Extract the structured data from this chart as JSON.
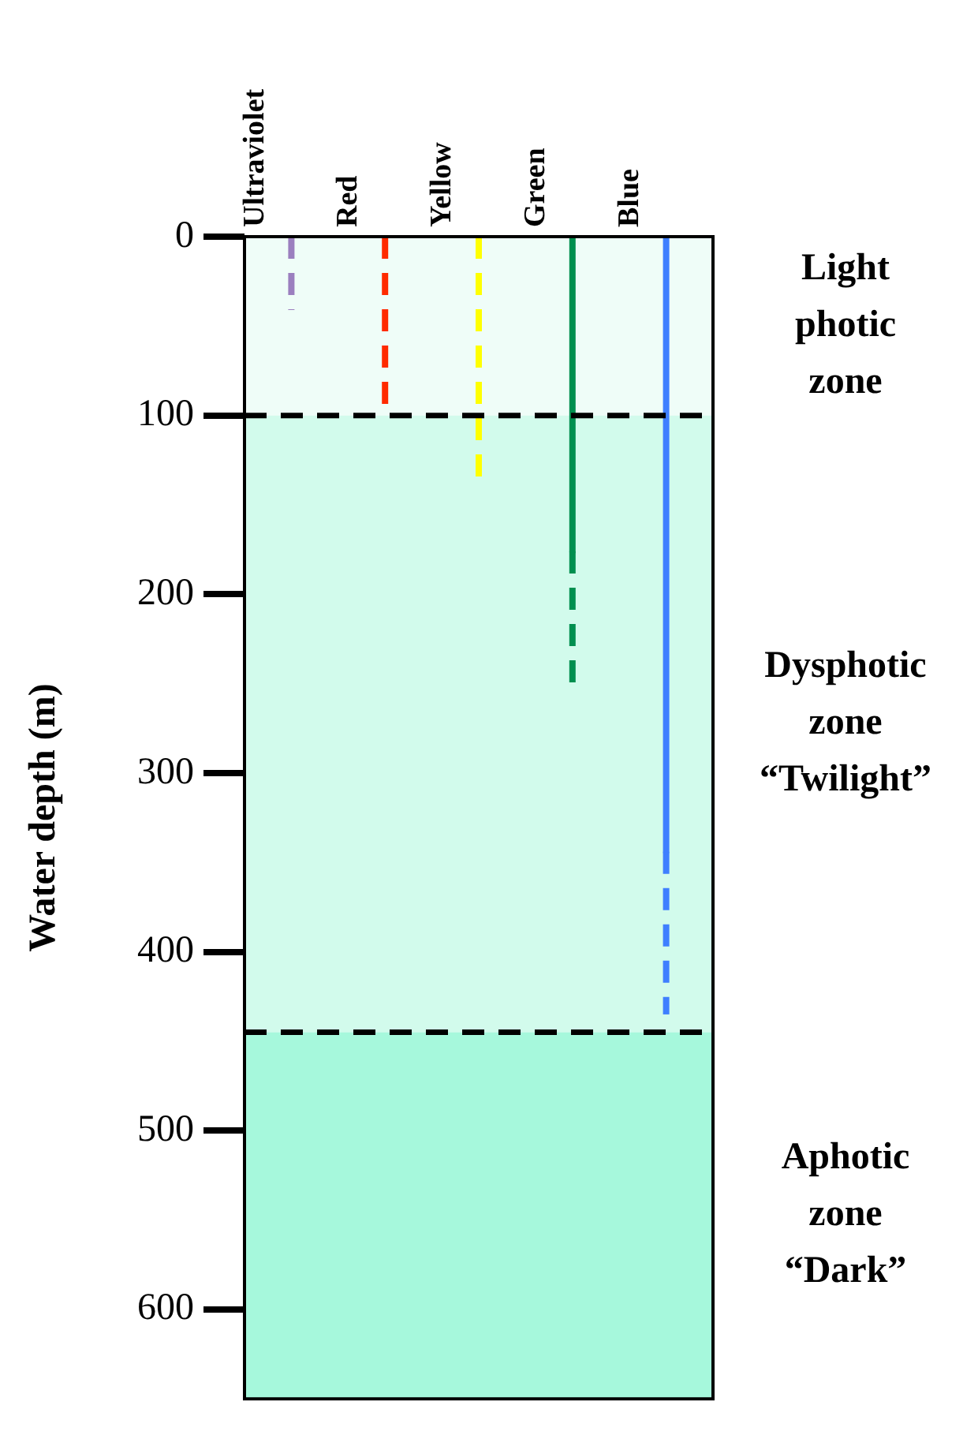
{
  "chart_data": {
    "type": "line",
    "categories": [
      "Ultraviolet",
      "Red",
      "Yellow",
      "Green",
      "Blue"
    ],
    "ylabel": "Water depth (m)",
    "ylim": [
      650,
      0
    ],
    "yticks": [
      0,
      100,
      200,
      300,
      400,
      500,
      600
    ],
    "series": [
      {
        "x": [
          "Ultraviolet",
          "Ultraviolet"
        ],
        "values": [
          0,
          41
        ],
        "color": "#9b7fbf",
        "line_style": "dashed"
      },
      {
        "x": [
          "Red",
          "Red"
        ],
        "values": [
          0,
          94
        ],
        "color": "#ff2a00",
        "line_style": "dashed"
      },
      {
        "x": [
          "Yellow",
          "Yellow"
        ],
        "values": [
          0,
          141
        ],
        "color": "#ffff00",
        "line_style": "dashed"
      },
      {
        "x": [
          "Green",
          "Green"
        ],
        "values": [
          0,
          176
        ],
        "color": "#008f4f",
        "line_style": "solid"
      },
      {
        "x": [
          "Green",
          "Green"
        ],
        "values": [
          176,
          250
        ],
        "color": "#008f4f",
        "line_style": "dashed"
      },
      {
        "x": [
          "Blue",
          "Blue"
        ],
        "values": [
          0,
          344
        ],
        "color": "#3f7fff",
        "line_style": "solid"
      },
      {
        "x": [
          "Blue",
          "Blue"
        ],
        "values": [
          344,
          435
        ],
        "color": "#3f7fff",
        "line_style": "dashed"
      }
    ],
    "ref_lines": [
      {
        "axis": "y",
        "value": 100,
        "color": "#000000",
        "line_style": "dashed"
      },
      {
        "axis": "y",
        "value": 445,
        "color": "#000000",
        "line_style": "dashed"
      }
    ],
    "bands": [
      {
        "axis": "y",
        "from": 0,
        "to": 100,
        "label": "Light photic zone",
        "color": "#effdf8"
      },
      {
        "axis": "y",
        "from": 100,
        "to": 445,
        "label": "Dysphotic zone “Twilight”",
        "color": "#d2fbec"
      },
      {
        "axis": "y",
        "from": 445,
        "to": 650,
        "label": "Aphotic zone “Dark”",
        "color": "#a6f8dc"
      }
    ],
    "grid": false,
    "legend": false
  }
}
